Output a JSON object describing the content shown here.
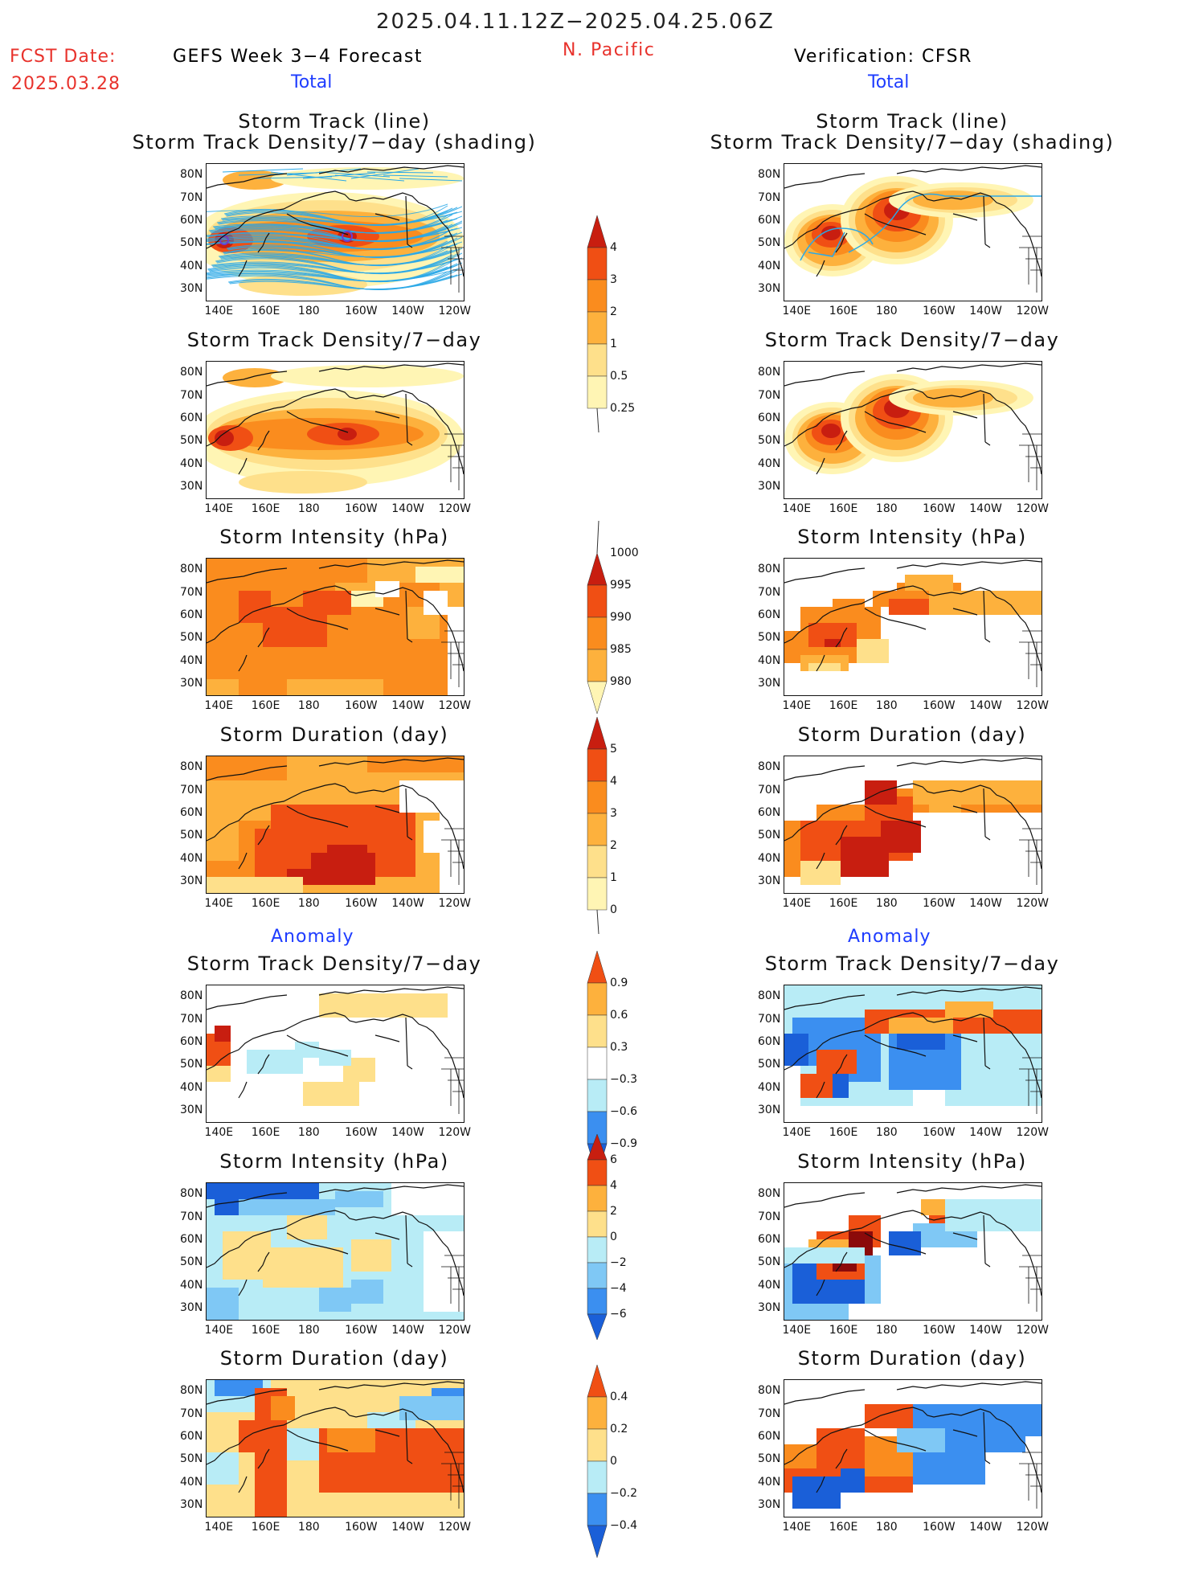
{
  "header": {
    "period": "2025.04.11.12Z−2025.04.25.06Z",
    "fcst_label": "FCST Date:",
    "fcst_date": "2025.03.28",
    "left_title": "GEFS Week 3−4 Forecast",
    "region": "N. Pacific",
    "right_title": "Verification: CFSR"
  },
  "sections": {
    "total": "Total",
    "anomaly": "Anomaly"
  },
  "panel_titles": {
    "track_line": "Storm Track (line)",
    "track_shading": "Storm Track Density/7−day (shading)",
    "density": "Storm Track Density/7−day",
    "intensity": "Storm Intensity (hPa)",
    "duration": "Storm Duration (day)"
  },
  "axes": {
    "lat_ticks": [
      "80N",
      "70N",
      "60N",
      "50N",
      "40N",
      "30N"
    ],
    "lon_ticks": [
      "140E",
      "160E",
      "180",
      "160W",
      "140W",
      "120W"
    ]
  },
  "colors": {
    "c025": "#fff5b4",
    "c05": "#fee08b",
    "c1": "#fdb13d",
    "c2": "#fa8c1e",
    "c3": "#f04f14",
    "c4": "#c81e10",
    "c5": "#8b0a0a",
    "b1": "#b8ecf6",
    "b2": "#7fc8f5",
    "b3": "#3b8ff0",
    "b4": "#1a5fd8",
    "track": "#2aa8e6",
    "coast": "#111111"
  },
  "chart_data": [
    {
      "id": "fcst-track",
      "type": "heatmap",
      "title": "Storm Track (line) / Storm Track Density/7−day (shading)",
      "source": "GEFS Week 3−4 Forecast",
      "xlabel": "",
      "ylabel": "",
      "xlim": [
        "140E",
        "120W"
      ],
      "ylim": [
        25,
        85
      ]
    },
    {
      "id": "fcst-density",
      "type": "heatmap",
      "title": "Storm Track Density/7−day",
      "source": "GEFS Week 3−4 Forecast"
    },
    {
      "id": "fcst-intensity",
      "type": "heatmap",
      "title": "Storm Intensity (hPa)",
      "source": "GEFS Week 3−4 Forecast"
    },
    {
      "id": "fcst-duration",
      "type": "heatmap",
      "title": "Storm Duration (day)",
      "source": "GEFS Week 3−4 Forecast"
    },
    {
      "id": "fcst-anom-density",
      "type": "heatmap",
      "title": "Storm Track Density/7−day",
      "section": "Anomaly"
    },
    {
      "id": "fcst-anom-intensity",
      "type": "heatmap",
      "title": "Storm Intensity (hPa)",
      "section": "Anomaly"
    },
    {
      "id": "fcst-anom-duration",
      "type": "heatmap",
      "title": "Storm Duration (day)",
      "section": "Anomaly"
    },
    {
      "id": "ver-track",
      "type": "heatmap",
      "title": "Storm Track (line) / Storm Track Density/7−day (shading)",
      "source": "Verification: CFSR"
    },
    {
      "id": "ver-density",
      "type": "heatmap",
      "title": "Storm Track Density/7−day",
      "source": "Verification: CFSR"
    },
    {
      "id": "ver-intensity",
      "type": "heatmap",
      "title": "Storm Intensity (hPa)",
      "source": "Verification: CFSR"
    },
    {
      "id": "ver-duration",
      "type": "heatmap",
      "title": "Storm Duration (day)",
      "source": "Verification: CFSR"
    },
    {
      "id": "ver-anom-density",
      "type": "heatmap",
      "title": "Storm Track Density/7−day",
      "section": "Anomaly"
    },
    {
      "id": "ver-anom-intensity",
      "type": "heatmap",
      "title": "Storm Intensity (hPa)",
      "section": "Anomaly"
    },
    {
      "id": "ver-anom-duration",
      "type": "heatmap",
      "title": "Storm Duration (day)",
      "section": "Anomaly"
    }
  ],
  "colorbars": {
    "density": {
      "labels": [
        "4",
        "3",
        "2",
        "1",
        "0.5",
        "0.25"
      ],
      "values": [
        4,
        3,
        2,
        1,
        0.5,
        0.25
      ]
    },
    "intensity": {
      "labels": [
        "1000",
        "995",
        "990",
        "985",
        "980"
      ],
      "values": [
        1000,
        995,
        990,
        985,
        980
      ]
    },
    "duration": {
      "labels": [
        "5",
        "4",
        "3",
        "2",
        "1",
        "0"
      ],
      "values": [
        5,
        4,
        3,
        2,
        1,
        0
      ]
    },
    "anom_density": {
      "labels": [
        "0.9",
        "0.6",
        "0.3",
        "−0.3",
        "−0.6",
        "−0.9"
      ],
      "values": [
        0.9,
        0.6,
        0.3,
        -0.3,
        -0.6,
        -0.9
      ]
    },
    "anom_intensity": {
      "labels": [
        "6",
        "4",
        "2",
        "0",
        "−2",
        "−4",
        "−6"
      ],
      "values": [
        6,
        4,
        2,
        0,
        -2,
        -4,
        -6
      ]
    },
    "anom_duration": {
      "labels": [
        "0.4",
        "0.2",
        "0",
        "−0.2",
        "−0.4"
      ],
      "values": [
        0.4,
        0.2,
        0,
        -0.2,
        -0.4
      ]
    }
  }
}
